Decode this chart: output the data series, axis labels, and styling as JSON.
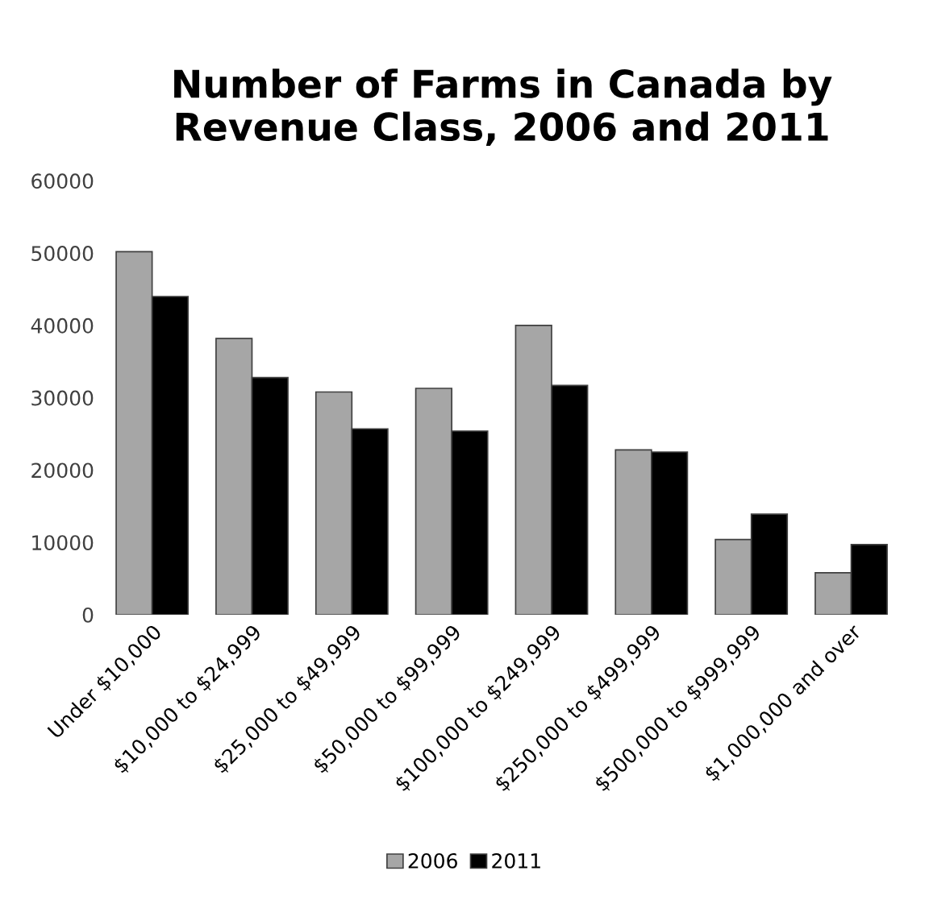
{
  "chart_data": {
    "type": "bar",
    "title": "Number of Farms in Canada by\nRevenue Class, 2006 and 2011",
    "categories": [
      "Under $10,000",
      "$10,000 to $24,999",
      "$25,000 to $49,999",
      "$50,000 to $99,999",
      "$100,000 to $249,999",
      "$250,000 to $499,999",
      "$500,000 to $999,999",
      "$1,000,000 and over"
    ],
    "series": [
      {
        "name": "2006",
        "color": "#a6a6a6",
        "values": [
          50200,
          38200,
          30800,
          31300,
          40000,
          22800,
          10400,
          5800
        ]
      },
      {
        "name": "2011",
        "color": "#000000",
        "values": [
          44000,
          32800,
          25700,
          25400,
          31700,
          22500,
          13900,
          9700
        ]
      }
    ],
    "ylim": [
      0,
      60000
    ],
    "yticks": [
      0,
      10000,
      20000,
      30000,
      40000,
      50000,
      60000
    ],
    "grid": false,
    "legend": "bottom"
  }
}
